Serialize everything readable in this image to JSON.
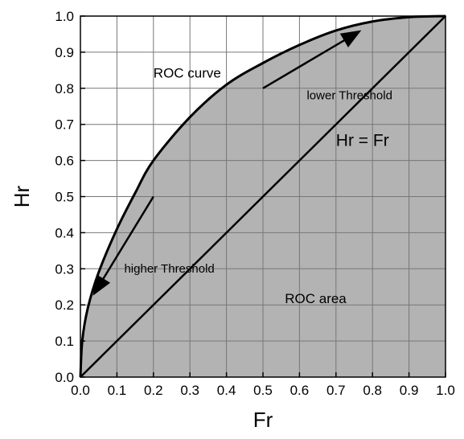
{
  "chart_data": {
    "type": "line",
    "xlabel": "Fr",
    "ylabel": "Hr",
    "xlim": [
      0,
      1
    ],
    "ylim": [
      0,
      1
    ],
    "grid": true,
    "x_ticks": [
      "0.0",
      "0.1",
      "0.2",
      "0.3",
      "0.4",
      "0.5",
      "0.6",
      "0.7",
      "0.8",
      "0.9",
      "1.0"
    ],
    "y_ticks": [
      "0.0",
      "0.1",
      "0.2",
      "0.3",
      "0.4",
      "0.5",
      "0.6",
      "0.7",
      "0.8",
      "0.9",
      "1.0"
    ],
    "series": [
      {
        "name": "ROC curve",
        "x": [
          0.0,
          0.005,
          0.02,
          0.05,
          0.1,
          0.15,
          0.2,
          0.3,
          0.4,
          0.5,
          0.6,
          0.7,
          0.8,
          0.9,
          1.0
        ],
        "y": [
          0.0,
          0.1,
          0.19,
          0.29,
          0.41,
          0.51,
          0.6,
          0.72,
          0.81,
          0.87,
          0.92,
          0.96,
          0.985,
          0.997,
          1.0
        ]
      },
      {
        "name": "Hr = Fr",
        "x": [
          0.0,
          1.0
        ],
        "y": [
          0.0,
          1.0
        ]
      }
    ],
    "shaded_region": "ROC area",
    "annotations": [
      {
        "text": "ROC curve",
        "x": 0.2,
        "y": 0.83,
        "size": "lg"
      },
      {
        "text": "lower Threshold",
        "x": 0.62,
        "y": 0.77,
        "size": "md"
      },
      {
        "text": "Hr = Fr",
        "x": 0.7,
        "y": 0.64,
        "size": "xl"
      },
      {
        "text": "higher Threshold",
        "x": 0.12,
        "y": 0.29,
        "size": "md"
      },
      {
        "text": "ROC area",
        "x": 0.56,
        "y": 0.205,
        "size": "lg"
      }
    ],
    "arrows": [
      {
        "name": "lower-threshold-arrow",
        "from": [
          0.5,
          0.8
        ],
        "to": [
          0.76,
          0.955
        ]
      },
      {
        "name": "higher-threshold-arrow",
        "from": [
          0.2,
          0.5
        ],
        "to": [
          0.04,
          0.235
        ]
      }
    ]
  }
}
